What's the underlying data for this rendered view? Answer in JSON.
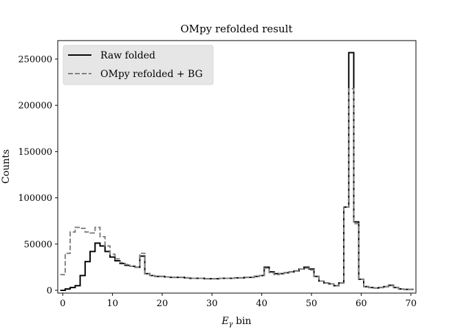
{
  "chart_data": {
    "type": "line",
    "step": true,
    "title": "OMpy refolded result",
    "xlabel_main": "E",
    "xlabel_sub": "γ",
    "xlabel_rest": " bin",
    "ylabel": "Counts",
    "xlim": [
      -1,
      71
    ],
    "ylim": [
      -3000,
      270000
    ],
    "xticks": [
      0,
      10,
      20,
      30,
      40,
      50,
      60,
      70
    ],
    "yticks": [
      0,
      50000,
      100000,
      150000,
      200000,
      250000
    ],
    "ytick_labels": [
      "0",
      "50000",
      "100000",
      "150000",
      "200000",
      "250000"
    ],
    "legend": {
      "placement": "top-left"
    },
    "series": [
      {
        "name": "Raw folded",
        "color": "#000000",
        "dash": "solid",
        "x": [
          0,
          1,
          2,
          3,
          4,
          5,
          6,
          7,
          8,
          9,
          10,
          11,
          12,
          13,
          14,
          15,
          16,
          17,
          18,
          19,
          20,
          21,
          22,
          23,
          24,
          25,
          26,
          27,
          28,
          29,
          30,
          31,
          32,
          33,
          34,
          35,
          36,
          37,
          38,
          39,
          40,
          41,
          42,
          43,
          44,
          45,
          46,
          47,
          48,
          49,
          50,
          51,
          52,
          53,
          54,
          55,
          56,
          57,
          58,
          59,
          60,
          61,
          62,
          63,
          64,
          65,
          66,
          67,
          68,
          69,
          70
        ],
        "values": [
          0,
          1500,
          3000,
          5000,
          16000,
          31000,
          42000,
          51000,
          48000,
          42000,
          36000,
          32000,
          29000,
          27000,
          26000,
          25000,
          37000,
          18000,
          16000,
          15000,
          15000,
          14500,
          14000,
          14000,
          14000,
          13500,
          13000,
          13000,
          13000,
          12500,
          12500,
          12500,
          13000,
          13000,
          13000,
          13500,
          13500,
          14000,
          14000,
          15000,
          16000,
          25000,
          20000,
          18000,
          18000,
          19000,
          20000,
          21000,
          23000,
          25000,
          23000,
          15000,
          10000,
          8000,
          7000,
          5000,
          8000,
          90000,
          257000,
          74000,
          12000,
          4000,
          3000,
          2500,
          3000,
          4000,
          5500,
          3000,
          1500,
          1000,
          1000
        ]
      },
      {
        "name": "OMpy refolded + BG",
        "color": "#808080",
        "dash": "dashed",
        "x": [
          0,
          1,
          2,
          3,
          4,
          5,
          6,
          7,
          8,
          9,
          10,
          11,
          12,
          13,
          14,
          15,
          16,
          17,
          18,
          19,
          20,
          21,
          22,
          23,
          24,
          25,
          26,
          27,
          28,
          29,
          30,
          31,
          32,
          33,
          34,
          35,
          36,
          37,
          38,
          39,
          40,
          41,
          42,
          43,
          44,
          45,
          46,
          47,
          48,
          49,
          50,
          51,
          52,
          53,
          54,
          55,
          56,
          57,
          58,
          59,
          60,
          61,
          62,
          63,
          64,
          65,
          66,
          67,
          68,
          69,
          70
        ],
        "values": [
          17000,
          40000,
          63000,
          68000,
          67000,
          63000,
          62000,
          68000,
          58000,
          48000,
          39000,
          34000,
          30000,
          28000,
          26000,
          25000,
          40000,
          18000,
          16000,
          15000,
          15000,
          14500,
          14000,
          14000,
          14000,
          13500,
          13000,
          13000,
          13000,
          12500,
          12500,
          12500,
          13000,
          13000,
          13000,
          13500,
          13500,
          14000,
          14000,
          15000,
          16000,
          24000,
          19000,
          17000,
          18000,
          19000,
          20000,
          21000,
          23000,
          24000,
          22000,
          15000,
          10000,
          8000,
          7000,
          5000,
          8000,
          90000,
          218000,
          72000,
          12000,
          4000,
          3000,
          2500,
          3000,
          4000,
          5000,
          3000,
          1500,
          1000,
          1000
        ]
      }
    ]
  }
}
